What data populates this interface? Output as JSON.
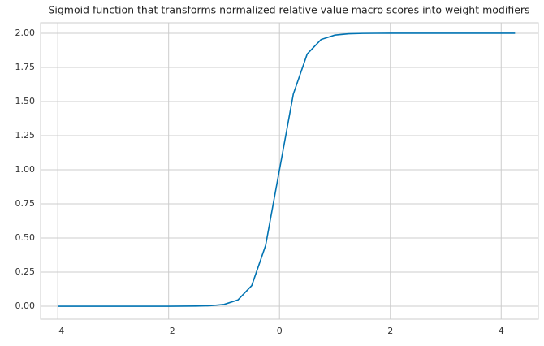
{
  "chart_data": {
    "type": "line",
    "title": "Sigmoid function that transforms normalized relative value macro scores into weight modifiers",
    "x": [
      -4,
      -3.75,
      -3.5,
      -3.25,
      -3,
      -2.75,
      -2.5,
      -2.25,
      -2,
      -1.75,
      -1.5,
      -1.25,
      -1,
      -0.75,
      -0.5,
      -0.25,
      0,
      0.25,
      0.5,
      0.75,
      1,
      1.25,
      1.5,
      1.75,
      2,
      2.25,
      2.5,
      2.75,
      3,
      3.25,
      3.5,
      3.75,
      4,
      4.25
    ],
    "series": [
      {
        "color": "#0173b2",
        "values": [
          0,
          0,
          0,
          0,
          0,
          0,
          0,
          0,
          0.0001,
          0.0003,
          0.0011,
          0.0039,
          0.0134,
          0.046,
          0.1517,
          0.4454,
          1,
          1.5546,
          1.8483,
          1.954,
          1.9866,
          1.9961,
          1.9989,
          1.9997,
          1.9999,
          2,
          2,
          2,
          2,
          2,
          2,
          2,
          2,
          2
        ]
      }
    ],
    "xlim": [
      -4.31,
      4.67
    ],
    "ylim": [
      -0.095,
      2.077
    ],
    "xticks": [
      {
        "value": -4,
        "label": "−4"
      },
      {
        "value": -2,
        "label": "−2"
      },
      0,
      2,
      4
    ],
    "yticks": [
      {
        "value": 0,
        "label": "0.00"
      },
      {
        "value": 0.25,
        "label": "0.25"
      },
      {
        "value": 0.5,
        "label": "0.50"
      },
      {
        "value": 0.75,
        "label": "0.75"
      },
      {
        "value": 1,
        "label": "1.00"
      },
      {
        "value": 1.25,
        "label": "1.25"
      },
      {
        "value": 1.5,
        "label": "1.50"
      },
      {
        "value": 1.75,
        "label": "1.75"
      },
      {
        "value": 2,
        "label": "2.00"
      }
    ],
    "grid": true
  }
}
